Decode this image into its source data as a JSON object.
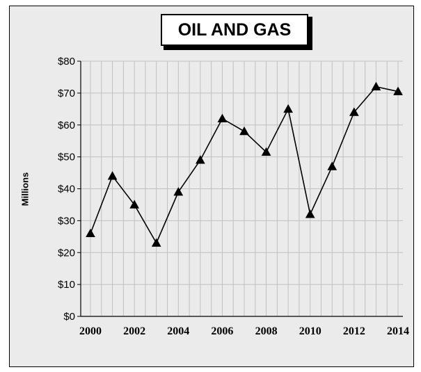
{
  "chart_data": {
    "type": "line",
    "title": "OIL AND GAS",
    "ylabel": "Millions",
    "xlabel": "",
    "x": [
      2000,
      2001,
      2002,
      2003,
      2004,
      2005,
      2006,
      2007,
      2008,
      2009,
      2010,
      2011,
      2012,
      2013,
      2014
    ],
    "values": [
      26,
      44,
      35,
      23,
      39,
      49,
      62,
      58,
      51.5,
      65,
      32,
      47,
      64,
      72,
      70.5
    ],
    "ylim": [
      0,
      80
    ],
    "xlim": [
      2000,
      2014
    ],
    "y_ticks": [
      "$0",
      "$10",
      "$20",
      "$30",
      "$40",
      "$50",
      "$60",
      "$70",
      "$80"
    ],
    "x_ticks": [
      "2000",
      "2002",
      "2004",
      "2006",
      "2008",
      "2010",
      "2012",
      "2014"
    ],
    "grid": true,
    "marker": "triangle",
    "colors": {
      "line": "#000000",
      "marker": "#000000",
      "plot_background": "#ebebeb",
      "gridline": "#c0c0c0"
    }
  }
}
